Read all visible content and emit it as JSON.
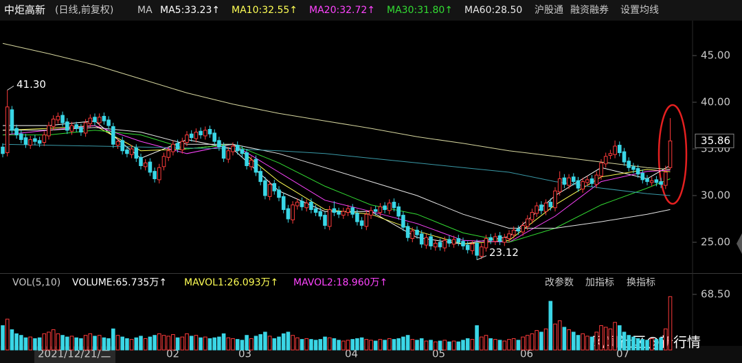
{
  "chart_data": {
    "type": "candlestick",
    "title": "中炬高新",
    "subtitle": "(日线,前复权)",
    "ma_title": "MA",
    "buttons": [
      "沪股通",
      "融资融券",
      "设置均线"
    ],
    "ylim": [
      22.65,
      48.75
    ],
    "yticks": [
      {
        "value": 45,
        "label": "45.00"
      },
      {
        "value": 40,
        "label": "40.00"
      },
      {
        "value": 35,
        "label": "35.00"
      },
      {
        "value": 30,
        "label": "30.00"
      },
      {
        "value": 25,
        "label": "25.00"
      }
    ],
    "x_labels": [
      "2021/12/21/二",
      "02",
      "03",
      "04",
      "05",
      "06",
      "07"
    ],
    "up_color": "#ff3b3b",
    "down_color": "#3ad6e6",
    "annotations": [
      {
        "value": 41.3,
        "label": "41.30"
      },
      {
        "value": 23.12,
        "label": "23.12"
      }
    ],
    "open": [
      35.2,
      34.6,
      39.2,
      37.2,
      36.6,
      36.2,
      35.4,
      36.1,
      35.9,
      35.7,
      36.4,
      37.4,
      38.1,
      38.6,
      37.9,
      36.9,
      37.6,
      37.3,
      36.7,
      37.7,
      38.4,
      37.8,
      38.5,
      38.1,
      37.4,
      35.4,
      35.9,
      34.9,
      34.4,
      35.1,
      34.1,
      33.1,
      33.6,
      32.6,
      31.7,
      33.1,
      34.1,
      34.7,
      35.6,
      34.9,
      35.7,
      36.6,
      36.1,
      36.9,
      36.4,
      37.1,
      36.7,
      35.9,
      35.3,
      33.9,
      34.7,
      35.4,
      34.9,
      34.6,
      33.1,
      33.9,
      32.6,
      31.6,
      29.9,
      31.3,
      30.6,
      29.9,
      28.6,
      27.4,
      28.9,
      29.4,
      28.7,
      29.3,
      28.6,
      28.3,
      27.9,
      26.7,
      28.6,
      28.3,
      27.9,
      28.2,
      28.7,
      28.1,
      27.3,
      26.7,
      27.9,
      28.5,
      28.2,
      28.9,
      28.4,
      29.3,
      28.8,
      27.9,
      26.7,
      25.4,
      26.3,
      25.9,
      24.7,
      25.6,
      24.5,
      25,
      24.4,
      25.3,
      24.8,
      25.4,
      25.1,
      24.7,
      24.1,
      24.9,
      23.5,
      24.4,
      25.5,
      25.1,
      25.7,
      25,
      25.4,
      25.8,
      26.4,
      26.1,
      26.7,
      27.4,
      28.1,
      29,
      28.3,
      29.3,
      28.7,
      30.4,
      31.9,
      31.1,
      32,
      31.6,
      30.7,
      31.4,
      31.8,
      31.2,
      32.1,
      33.4,
      34.3,
      34.4,
      35.4,
      34.7,
      33.7,
      33.1,
      32.9,
      32.4,
      31.8,
      31.4,
      31.7,
      31.5,
      31.1,
      33
    ],
    "high": [
      35.6,
      41.3,
      39.6,
      37.6,
      37,
      36.6,
      36.4,
      36.5,
      36.3,
      36.9,
      37.9,
      38.6,
      38.9,
      39,
      38.3,
      37.9,
      37.9,
      37.7,
      38.2,
      38.7,
      38.8,
      38.8,
      38.9,
      38.5,
      37.8,
      36.2,
      36.3,
      35.3,
      35.4,
      35.5,
      34.5,
      33.9,
      34,
      33,
      33.4,
      34.6,
      35.2,
      35.9,
      36,
      36.2,
      36.9,
      37,
      37.2,
      37.3,
      37.4,
      37.5,
      37.1,
      36.3,
      35.7,
      35.2,
      35.7,
      35.8,
      35.3,
      35,
      34.2,
      34.3,
      33,
      32,
      31.6,
      31.7,
      31,
      30.3,
      29,
      29.4,
      29.7,
      29.8,
      29.6,
      29.7,
      29,
      28.7,
      28.3,
      28.9,
      29.4,
      28.7,
      28.7,
      29,
      29.1,
      28.5,
      27.7,
      28.4,
      28.8,
      28.9,
      29.2,
      29.3,
      29.6,
      29.7,
      29.2,
      28.3,
      27.1,
      26.6,
      26.7,
      26.3,
      25.9,
      26,
      25.3,
      25.4,
      25.6,
      25.7,
      25.7,
      25.8,
      25.5,
      25.1,
      25.2,
      25.3,
      24.9,
      25.8,
      25.9,
      26,
      26.1,
      25.9,
      26.3,
      26.7,
      26.8,
      27.2,
      27.9,
      28.6,
      29.3,
      29.4,
      29.6,
      29.7,
      30.9,
      32.6,
      32.3,
      32.3,
      32.4,
      32,
      31.9,
      32.1,
      32.2,
      32.6,
      33.9,
      34.6,
      34.9,
      35.9,
      35.8,
      35.1,
      34.1,
      33.5,
      33.3,
      32.8,
      32.2,
      32,
      32.1,
      31.9,
      33.2,
      38.3
    ],
    "low": [
      34.1,
      34.2,
      36.6,
      36.1,
      35.6,
      35.1,
      35,
      35.4,
      35.2,
      35.3,
      36,
      37,
      37.7,
      37.4,
      36.6,
      36.5,
      36.8,
      36.4,
      36.3,
      37.3,
      37.5,
      37.4,
      37.6,
      37.1,
      35.1,
      35,
      34.4,
      34.1,
      34,
      33.6,
      32.8,
      32.7,
      32.1,
      31.4,
      31.3,
      32.7,
      33.7,
      34.3,
      34.6,
      34.5,
      35.3,
      35.8,
      35.7,
      36.1,
      36,
      36.2,
      35.4,
      34.8,
      33.6,
      33.5,
      34.3,
      34.4,
      34.1,
      32.8,
      32.7,
      32.1,
      31.1,
      29.6,
      29.5,
      30.1,
      29.4,
      28.1,
      27.1,
      27,
      28.5,
      28.4,
      28.3,
      28.1,
      27.8,
      27.4,
      26.4,
      26.3,
      27.8,
      27.6,
      27.5,
      27.8,
      27.6,
      26.8,
      26.4,
      26.3,
      27.5,
      27.9,
      27.8,
      28.1,
      28,
      28.3,
      27.4,
      26.2,
      25.1,
      25,
      25.4,
      24.4,
      24.3,
      24.2,
      24.1,
      24.1,
      24,
      24.5,
      24.4,
      24.6,
      24.2,
      23.8,
      23.7,
      23.12,
      23.2,
      24,
      24.8,
      24.7,
      24.7,
      24.6,
      25,
      25.4,
      25.8,
      25.7,
      26.3,
      27,
      27.7,
      28,
      27.9,
      28.4,
      28.3,
      30,
      30.8,
      30.7,
      31.1,
      30.4,
      30.3,
      31,
      30.9,
      30.8,
      31.7,
      33,
      33.9,
      34,
      34.2,
      33.2,
      32.6,
      32.4,
      31.9,
      31.3,
      31.1,
      31,
      31,
      30.8,
      30.7,
      32.8
    ],
    "close": [
      34.5,
      39.5,
      37,
      36.5,
      36,
      35.5,
      36,
      35.8,
      35.6,
      36.5,
      37.5,
      38.2,
      38.5,
      37.8,
      37,
      37.5,
      37.2,
      36.8,
      37.8,
      38.3,
      37.9,
      38.4,
      38,
      37.5,
      35.5,
      35.8,
      34.8,
      34.5,
      35,
      34,
      33.2,
      33.5,
      32.5,
      31.8,
      33,
      34.2,
      34.8,
      35.5,
      35,
      35.8,
      36.5,
      36.2,
      36.8,
      36.5,
      37,
      36.6,
      35.8,
      35.2,
      34,
      34.8,
      35.3,
      34.8,
      34.5,
      33.2,
      33.8,
      32.5,
      31.5,
      30,
      31.2,
      30.5,
      29.8,
      28.5,
      27.5,
      29,
      29.3,
      28.8,
      29.2,
      28.5,
      28.2,
      27.8,
      26.8,
      28.5,
      28.2,
      28,
      28.3,
      28.6,
      28,
      27.2,
      26.8,
      28,
      28.4,
      28.3,
      28.8,
      28.5,
      29.2,
      28.7,
      27.8,
      26.6,
      25.5,
      26.2,
      25.8,
      24.8,
      25.5,
      24.6,
      24.9,
      24.5,
      25.2,
      24.9,
      25.3,
      25,
      24.6,
      24.2,
      24.8,
      23.6,
      24.5,
      25.4,
      25.2,
      25.6,
      25.1,
      25.5,
      25.9,
      26.3,
      26.2,
      26.8,
      27.5,
      28.2,
      28.9,
      28.4,
      29.2,
      28.8,
      30.5,
      31.8,
      31.2,
      31.9,
      31.5,
      30.8,
      31.5,
      31.7,
      31.3,
      32.2,
      33.5,
      34.2,
      34.5,
      35.3,
      34.6,
      33.6,
      33,
      32.8,
      32.3,
      31.7,
      31.5,
      31.6,
      31.4,
      31.2,
      32.5,
      35.86
    ],
    "line_x": [
      0,
      10,
      20,
      30,
      40,
      50,
      60,
      70,
      80,
      90,
      100,
      110,
      120,
      130,
      140,
      145
    ],
    "lines": [
      {
        "label": "MA5:33.23↑",
        "color": "#ffffff",
        "values": [
          37.5,
          37.5,
          38,
          34,
          36,
          35,
          30.5,
          28.3,
          28.3,
          25.5,
          24.8,
          25.6,
          30,
          33,
          31.8,
          33.23
        ]
      },
      {
        "label": "MA10:32.55↑",
        "color": "#ffff55",
        "values": [
          37,
          37.2,
          37.5,
          34.8,
          35,
          35.5,
          31.5,
          28.5,
          28,
          26.2,
          24.8,
          25.2,
          29,
          32,
          32.8,
          32.55
        ]
      },
      {
        "label": "MA20:32.72↑",
        "color": "#ff44ff",
        "values": [
          36.5,
          37,
          37.5,
          35.8,
          34.5,
          35.5,
          32.5,
          29.5,
          28.3,
          27,
          25.2,
          25,
          27.8,
          31.5,
          32.6,
          32.72
        ]
      },
      {
        "label": "MA30:31.80↑",
        "color": "#33dd33",
        "values": [
          36.5,
          36.5,
          37,
          36.5,
          35,
          35.5,
          33.5,
          31,
          29,
          28,
          26,
          25,
          26.5,
          29,
          30.8,
          31.8
        ]
      },
      {
        "label": "MA60:28.50",
        "color": "#e8e8e8",
        "values": [
          37,
          37,
          37.3,
          36.8,
          35.5,
          35.5,
          34.5,
          33,
          31.5,
          30,
          28,
          26.5,
          26.5,
          27.2,
          28,
          28.5
        ]
      },
      {
        "color": "#d8d8a0",
        "values": [
          46.3,
          45.2,
          44,
          42.5,
          41,
          39.8,
          38.8,
          38,
          37.2,
          36.3,
          35.6,
          34.8,
          34.2,
          33.6,
          33,
          32.8
        ]
      },
      {
        "color": "#3a9aa8",
        "values": [
          35.5,
          35.4,
          35.3,
          35.2,
          35.1,
          35,
          34.8,
          34.5,
          34,
          33.5,
          33,
          32.5,
          31.5,
          30.8,
          30.2,
          30
        ]
      }
    ],
    "volume": {
      "title": "VOL(5,10)",
      "labels": [
        "VOLUME:65.735万↑",
        "MAVOL1:26.093万↑",
        "MAVOL2:18.960万↑"
      ],
      "label_colors": [
        "#ffffff",
        "#ffff55",
        "#ff44ff"
      ],
      "buttons": [
        "改参数",
        "加指标",
        "换指标"
      ],
      "ylim": [
        0,
        88.8
      ],
      "yticks": [
        {
          "value": 68.5,
          "label": "68.50"
        }
      ],
      "values": [
        30,
        38,
        25,
        20,
        18,
        15,
        16,
        14,
        15,
        20,
        22,
        25,
        20,
        18,
        16,
        17,
        15,
        14,
        18,
        20,
        17,
        18,
        15,
        14,
        26,
        18,
        16,
        14,
        13,
        15,
        17,
        14,
        16,
        18,
        20,
        18,
        17,
        19,
        15,
        16,
        20,
        17,
        18,
        15,
        16,
        14,
        15,
        16,
        20,
        15,
        14,
        13,
        12,
        18,
        14,
        17,
        19,
        22,
        17,
        14,
        16,
        20,
        22,
        18,
        15,
        13,
        14,
        13,
        12,
        13,
        16,
        15,
        14,
        12,
        11,
        12,
        13,
        14,
        15,
        13,
        12,
        11,
        13,
        12,
        14,
        13,
        14,
        16,
        18,
        13,
        12,
        14,
        11,
        12,
        10,
        11,
        12,
        10,
        11,
        10,
        12,
        14,
        13,
        30,
        16,
        18,
        14,
        13,
        12,
        11,
        13,
        14,
        12,
        16,
        18,
        20,
        24,
        22,
        26,
        60,
        32,
        36,
        28,
        25,
        22,
        18,
        20,
        17,
        16,
        22,
        30,
        28,
        26,
        34,
        30,
        22,
        18,
        16,
        14,
        13,
        12,
        14,
        13,
        15,
        26,
        65.735
      ]
    }
  },
  "watermark": "风闻社区@新行情"
}
